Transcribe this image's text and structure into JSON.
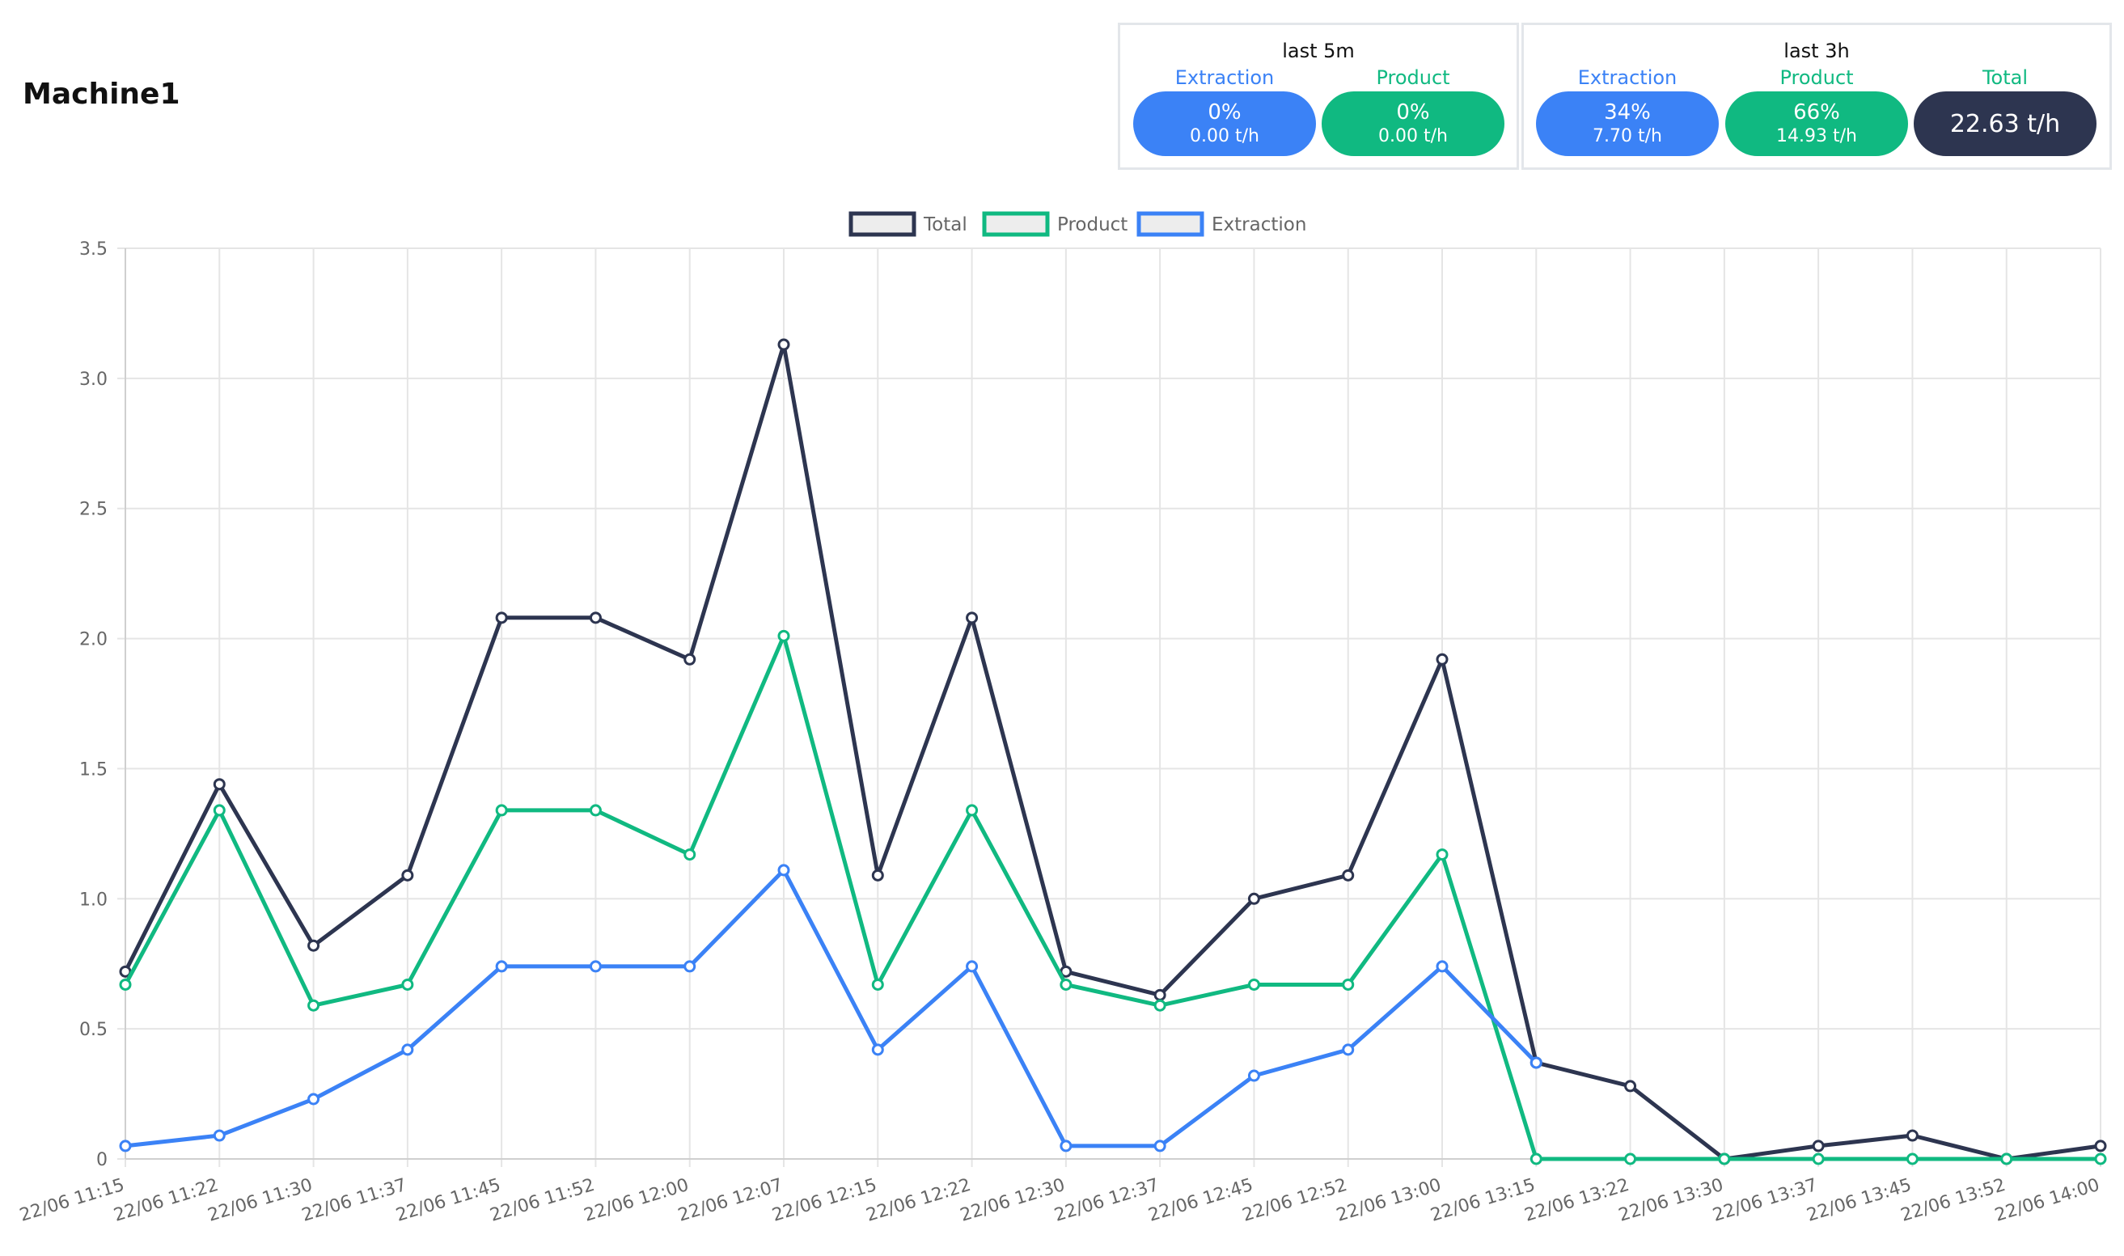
{
  "header": {
    "title": "Machine1"
  },
  "colors": {
    "extraction": "#3b82f6",
    "product": "#10b981",
    "total": "#2d3550"
  },
  "summary": {
    "last5m": {
      "title": "last 5m",
      "extraction": {
        "label": "Extraction",
        "pct": "0%",
        "rate": "0.00 t/h"
      },
      "product": {
        "label": "Product",
        "pct": "0%",
        "rate": "0.00 t/h"
      }
    },
    "last3h": {
      "title": "last 3h",
      "extraction": {
        "label": "Extraction",
        "pct": "34%",
        "rate": "7.70 t/h"
      },
      "product": {
        "label": "Product",
        "pct": "66%",
        "rate": "14.93 t/h"
      },
      "total": {
        "label": "Total",
        "value": "22.63 t/h"
      }
    }
  },
  "chart_data": {
    "type": "line",
    "title": "",
    "xlabel": "",
    "ylabel": "",
    "ylim": [
      0,
      3.5
    ],
    "yticks": [
      "0",
      "0.5",
      "1.0",
      "1.5",
      "2.0",
      "2.5",
      "3.0",
      "3.5"
    ],
    "grid": true,
    "legend_position": "top-center",
    "x": [
      "22/06 11:15",
      "22/06 11:22",
      "22/06 11:30",
      "22/06 11:37",
      "22/06 11:45",
      "22/06 11:52",
      "22/06 12:00",
      "22/06 12:07",
      "22/06 12:15",
      "22/06 12:22",
      "22/06 12:30",
      "22/06 12:37",
      "22/06 12:45",
      "22/06 12:52",
      "22/06 13:00",
      "22/06 13:15",
      "22/06 13:22",
      "22/06 13:30",
      "22/06 13:37",
      "22/06 13:45",
      "22/06 13:52",
      "22/06 14:00"
    ],
    "series": [
      {
        "name": "Total",
        "color": "#2d3550",
        "values": [
          0.72,
          1.44,
          0.82,
          1.09,
          2.08,
          2.08,
          1.92,
          3.13,
          1.09,
          2.08,
          0.72,
          0.63,
          1.0,
          1.09,
          1.92,
          0.37,
          0.28,
          0.0,
          0.05,
          0.09,
          0.0,
          0.05
        ]
      },
      {
        "name": "Product",
        "color": "#10b981",
        "values": [
          0.67,
          1.34,
          0.59,
          0.67,
          1.34,
          1.34,
          1.17,
          2.01,
          0.67,
          1.34,
          0.67,
          0.59,
          0.67,
          0.67,
          1.17,
          0.0,
          0.0,
          0.0,
          0.0,
          0.0,
          0.0,
          0.0
        ]
      },
      {
        "name": "Extraction",
        "color": "#3b82f6",
        "values": [
          0.05,
          0.09,
          0.23,
          0.42,
          0.74,
          0.74,
          0.74,
          1.11,
          0.42,
          0.74,
          0.05,
          0.05,
          0.32,
          0.42,
          0.74,
          0.37,
          null,
          null,
          null,
          null,
          null,
          null
        ]
      }
    ]
  }
}
